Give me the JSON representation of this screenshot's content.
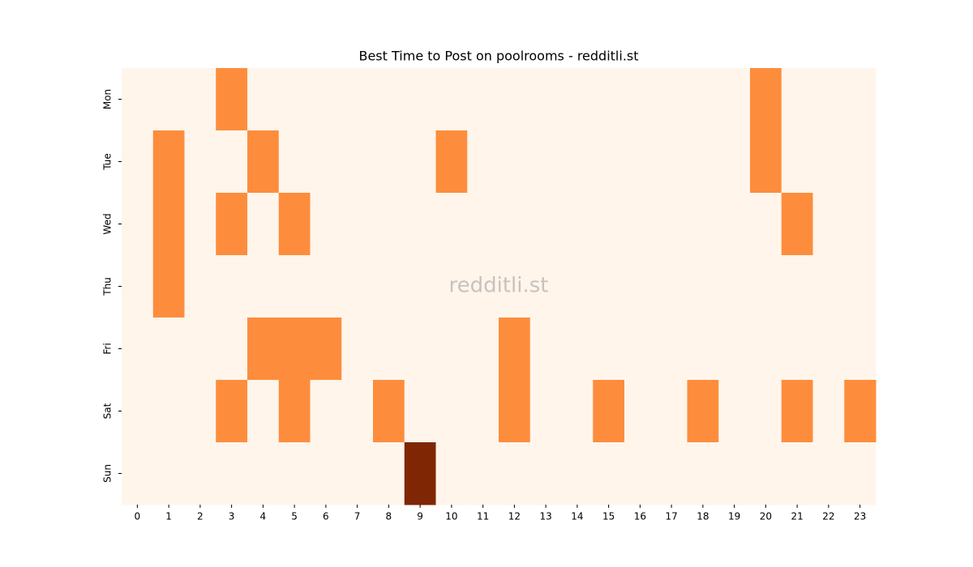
{
  "chart_data": {
    "type": "heatmap",
    "title": "Best Time to Post on poolrooms - redditli.st",
    "watermark": "redditli.st",
    "x": [
      0,
      1,
      2,
      3,
      4,
      5,
      6,
      7,
      8,
      9,
      10,
      11,
      12,
      13,
      14,
      15,
      16,
      17,
      18,
      19,
      20,
      21,
      22,
      23
    ],
    "y": [
      "Mon",
      "Tue",
      "Wed",
      "Thu",
      "Fri",
      "Sat",
      "Sun"
    ],
    "values": [
      [
        0,
        0,
        0,
        1,
        0,
        0,
        0,
        0,
        0,
        0,
        0,
        0,
        0,
        0,
        0,
        0,
        0,
        0,
        0,
        0,
        1,
        0,
        0,
        0
      ],
      [
        0,
        1,
        0,
        0,
        1,
        0,
        0,
        0,
        0,
        0,
        1,
        0,
        0,
        0,
        0,
        0,
        0,
        0,
        0,
        0,
        1,
        0,
        0,
        0
      ],
      [
        0,
        1,
        0,
        1,
        0,
        1,
        0,
        0,
        0,
        0,
        0,
        0,
        0,
        0,
        0,
        0,
        0,
        0,
        0,
        0,
        0,
        1,
        0,
        0
      ],
      [
        0,
        1,
        0,
        0,
        0,
        0,
        0,
        0,
        0,
        0,
        0,
        0,
        0,
        0,
        0,
        0,
        0,
        0,
        0,
        0,
        0,
        0,
        0,
        0
      ],
      [
        0,
        0,
        0,
        0,
        1,
        1,
        1,
        0,
        0,
        0,
        0,
        0,
        1,
        0,
        0,
        0,
        0,
        0,
        0,
        0,
        0,
        0,
        0,
        0
      ],
      [
        0,
        0,
        0,
        1,
        0,
        1,
        0,
        0,
        1,
        0,
        0,
        0,
        1,
        0,
        0,
        1,
        0,
        0,
        1,
        0,
        0,
        1,
        0,
        1
      ],
      [
        0,
        0,
        0,
        0,
        0,
        0,
        0,
        0,
        0,
        2,
        0,
        0,
        0,
        0,
        0,
        0,
        0,
        0,
        0,
        0,
        0,
        0,
        0,
        0
      ]
    ],
    "zlim": [
      0,
      2
    ],
    "colorscale": [
      "#fff5eb",
      "#fd8d3c",
      "#7f2704"
    ]
  }
}
